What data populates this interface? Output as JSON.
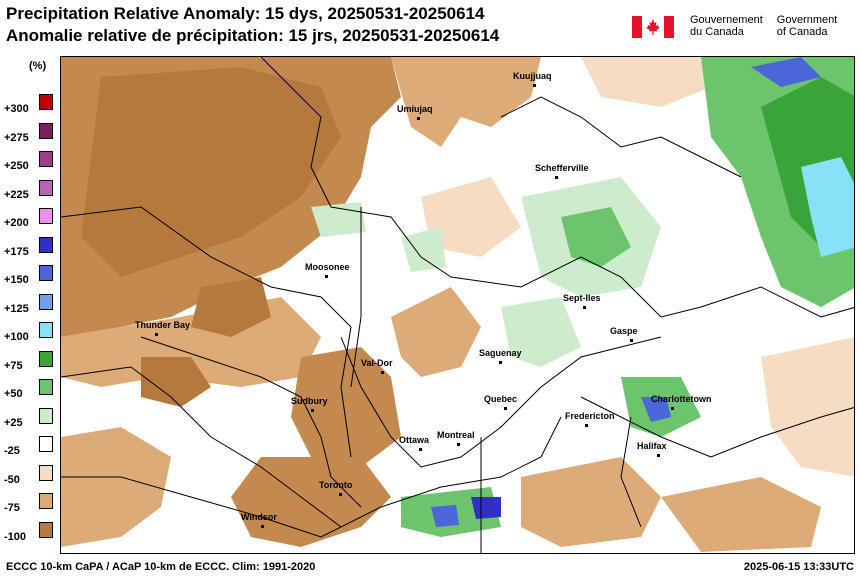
{
  "title_en": "Precipitation Relative Anomaly: 15 dys, 20250531-20250614",
  "title_fr": "Anomalie relative de précipitation: 15 jrs, 20250531-20250614",
  "gov": {
    "fr_line1": "Gouvernement",
    "fr_line2": "du Canada",
    "en_line1": "Government",
    "en_line2": "of Canada",
    "flag_icon": "canada-flag-icon"
  },
  "legend": {
    "unit": "(%)",
    "classes": [
      {
        "label": "+300",
        "color": "#c00000"
      },
      {
        "label": "+275",
        "color": "#7a1f5f"
      },
      {
        "label": "+250",
        "color": "#9b3f8b"
      },
      {
        "label": "+225",
        "color": "#b466b4"
      },
      {
        "label": "+200",
        "color": "#e893e8"
      },
      {
        "label": "+175",
        "color": "#3030c8"
      },
      {
        "label": "+150",
        "color": "#4a66d8"
      },
      {
        "label": "+125",
        "color": "#6fa0ea"
      },
      {
        "label": "+100",
        "color": "#87e2f8"
      },
      {
        "label": "+75",
        "color": "#3aa33a"
      },
      {
        "label": "+50",
        "color": "#6cc46c"
      },
      {
        "label": "+25",
        "color": "#cdeccd"
      },
      {
        "label": "-25",
        "color": "#ffffff"
      },
      {
        "label": "-50",
        "color": "#f5dcc2"
      },
      {
        "label": "-75",
        "color": "#dcab78"
      },
      {
        "label": "-100",
        "color": "#b5793e"
      }
    ]
  },
  "cities": [
    "Kuujjuaq",
    "Umiujaq",
    "Schefferville",
    "Moosonee",
    "Sept-Iles",
    "Thunder Bay",
    "Gaspe",
    "Saguenay",
    "Val-Dor",
    "Sudbury",
    "Quebec",
    "Charlottetown",
    "Fredericton",
    "Ottawa",
    "Montreal",
    "Halifax",
    "Toronto",
    "Windsor"
  ],
  "footer_left": "ECCC 10-km CaPA / ACaP 10-km de ECCC. Clim: 1991-2020",
  "footer_right": "2025-06-15 13:33UTC"
}
